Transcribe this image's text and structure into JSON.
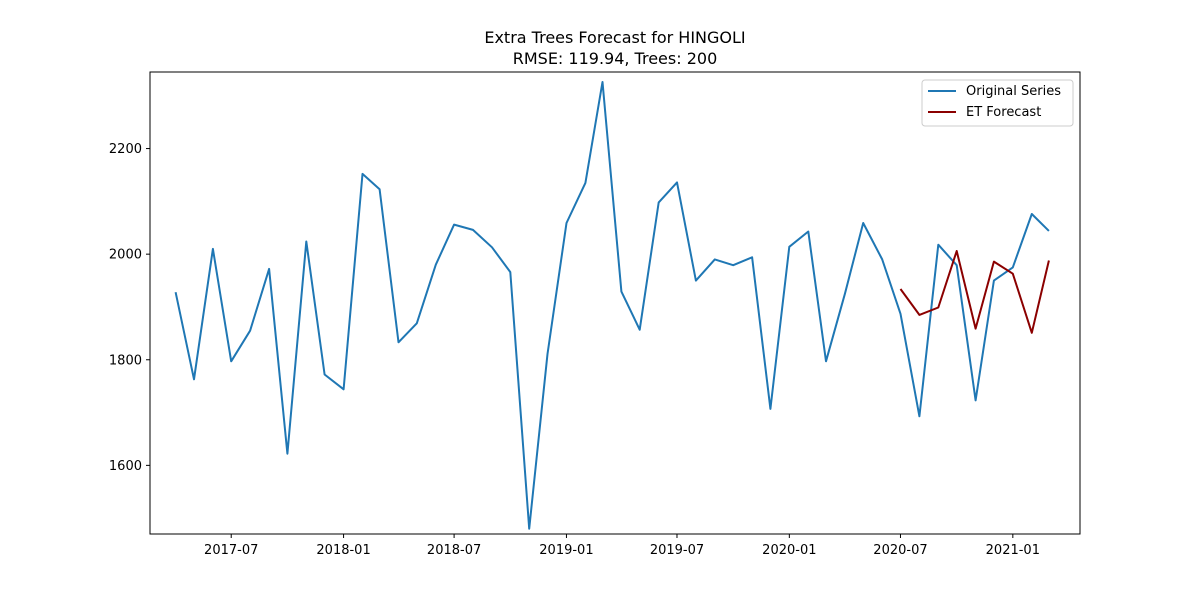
{
  "chart_data": {
    "type": "line",
    "title": "Extra Trees Forecast for HINGOLI",
    "subtitle": "RMSE: 119.94, Trees: 200",
    "xlabel": "",
    "ylabel": "",
    "x_ticks": [
      "2017-07",
      "2018-01",
      "2018-07",
      "2019-01",
      "2019-07",
      "2020-01",
      "2020-07",
      "2021-01"
    ],
    "y_ticks": [
      1600,
      1800,
      2000,
      2200
    ],
    "xlim": [
      "2017-02-18",
      "2021-04-21"
    ],
    "ylim": [
      1470,
      2345
    ],
    "grid": false,
    "legend": "top-right",
    "series": [
      {
        "name": "Original Series",
        "color": "#1f77b4",
        "points": [
          [
            "2017-04-01",
            1928
          ],
          [
            "2017-05-01",
            1763
          ],
          [
            "2017-06-01",
            2010
          ],
          [
            "2017-07-01",
            1797
          ],
          [
            "2017-08-01",
            1855
          ],
          [
            "2017-09-01",
            1972
          ],
          [
            "2017-10-01",
            1622
          ],
          [
            "2017-11-01",
            2024
          ],
          [
            "2017-12-01",
            1772
          ],
          [
            "2018-01-01",
            1744
          ],
          [
            "2018-02-01",
            2152
          ],
          [
            "2018-03-01",
            2123
          ],
          [
            "2018-04-01",
            1833
          ],
          [
            "2018-05-01",
            1869
          ],
          [
            "2018-06-01",
            1980
          ],
          [
            "2018-07-01",
            2056
          ],
          [
            "2018-08-01",
            2046
          ],
          [
            "2018-09-01",
            2013
          ],
          [
            "2018-10-01",
            1966
          ],
          [
            "2018-11-01",
            1480
          ],
          [
            "2018-12-01",
            1811
          ],
          [
            "2019-01-01",
            2059
          ],
          [
            "2019-02-01",
            2135
          ],
          [
            "2019-03-01",
            2326
          ],
          [
            "2019-04-01",
            1929
          ],
          [
            "2019-05-01",
            1857
          ],
          [
            "2019-06-01",
            2098
          ],
          [
            "2019-07-01",
            2136
          ],
          [
            "2019-08-01",
            1950
          ],
          [
            "2019-09-01",
            1990
          ],
          [
            "2019-10-01",
            1979
          ],
          [
            "2019-11-01",
            1994
          ],
          [
            "2019-12-01",
            1707
          ],
          [
            "2020-01-01",
            2014
          ],
          [
            "2020-02-01",
            2043
          ],
          [
            "2020-03-01",
            1797
          ],
          [
            "2020-04-01",
            1925
          ],
          [
            "2020-05-01",
            2059
          ],
          [
            "2020-06-01",
            1990
          ],
          [
            "2020-07-01",
            1887
          ],
          [
            "2020-08-01",
            1693
          ],
          [
            "2020-09-01",
            2018
          ],
          [
            "2020-10-01",
            1979
          ],
          [
            "2020-11-01",
            1723
          ],
          [
            "2020-12-01",
            1950
          ],
          [
            "2021-01-01",
            1975
          ],
          [
            "2021-02-01",
            2076
          ],
          [
            "2021-03-01",
            2044
          ]
        ]
      },
      {
        "name": "ET Forecast",
        "color": "#8b0000",
        "points": [
          [
            "2020-07-01",
            1934
          ],
          [
            "2020-08-01",
            1885
          ],
          [
            "2020-09-01",
            1899
          ],
          [
            "2020-10-01",
            2006
          ],
          [
            "2020-11-01",
            1859
          ],
          [
            "2020-12-01",
            1986
          ],
          [
            "2021-01-01",
            1963
          ],
          [
            "2021-02-01",
            1851
          ],
          [
            "2021-03-01",
            1988
          ]
        ]
      }
    ]
  }
}
